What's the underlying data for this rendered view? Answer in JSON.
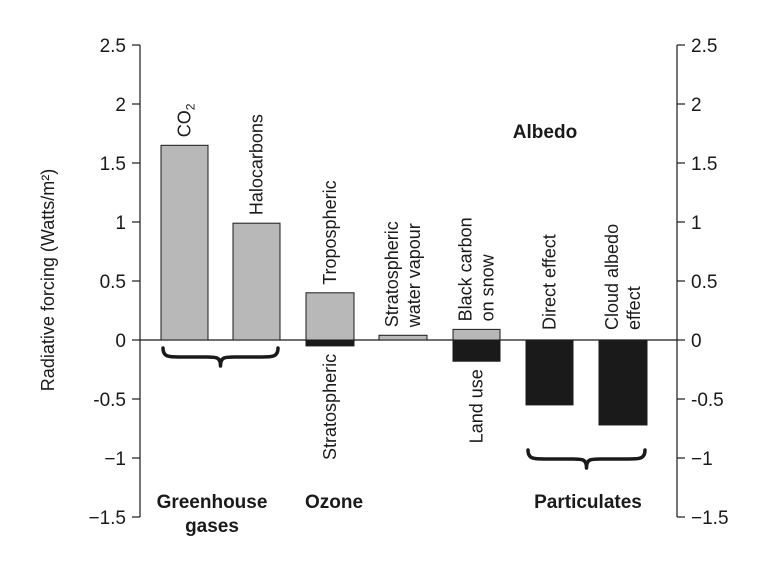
{
  "chart_data": {
    "type": "bar",
    "title": "",
    "xlabel": "",
    "ylabel": "Radiative forcing (Watts/m²)",
    "ylim": [
      -1.5,
      2.5
    ],
    "yticks": [
      2.5,
      2,
      1.5,
      1,
      0.5,
      0,
      -0.5,
      -1,
      -1.5
    ],
    "ytick_labels": [
      "2.5",
      "2",
      "1.5",
      "1",
      "0.5",
      "0",
      "-0.5",
      "−1",
      "−1.5"
    ],
    "grid": false,
    "colors": {
      "positive": "#b8b8b8",
      "negative": "#1a1a1a",
      "outline": "#1a1a1a"
    },
    "bars": [
      {
        "label": "CO₂",
        "value": 1.65,
        "sign": "positive"
      },
      {
        "label": "Halocarbons",
        "value": 0.99,
        "sign": "positive"
      },
      {
        "label": "Tropospheric",
        "value": 0.4,
        "sign": "positive"
      },
      {
        "label": "Stratospheric",
        "value": -0.05,
        "sign": "negative"
      },
      {
        "label": "Stratospheric water vapour",
        "label_lines": [
          "Stratospheric",
          "water vapour"
        ],
        "value": 0.04,
        "sign": "positive"
      },
      {
        "label": "Black carbon on snow",
        "label_lines": [
          "Black carbon",
          "on snow"
        ],
        "value": 0.09,
        "sign": "positive"
      },
      {
        "label": "Land use",
        "value": -0.18,
        "sign": "negative"
      },
      {
        "label": "Direct effect",
        "value": -0.55,
        "sign": "negative"
      },
      {
        "label": "Cloud albedo effect",
        "label_lines": [
          "Cloud albedo",
          "effect"
        ],
        "value": -0.72,
        "sign": "negative"
      }
    ],
    "groups": [
      {
        "label": "Greenhouse gases",
        "label_lines": [
          "Greenhouse",
          "gases"
        ],
        "members": [
          "CO₂",
          "Halocarbons"
        ]
      },
      {
        "label": "Ozone",
        "members": [
          "Tropospheric",
          "Stratospheric"
        ]
      },
      {
        "label": "Albedo",
        "members": [
          "Black carbon on snow",
          "Land use"
        ]
      },
      {
        "label": "Particulates",
        "members": [
          "Direct effect",
          "Cloud albedo effect"
        ]
      }
    ]
  }
}
